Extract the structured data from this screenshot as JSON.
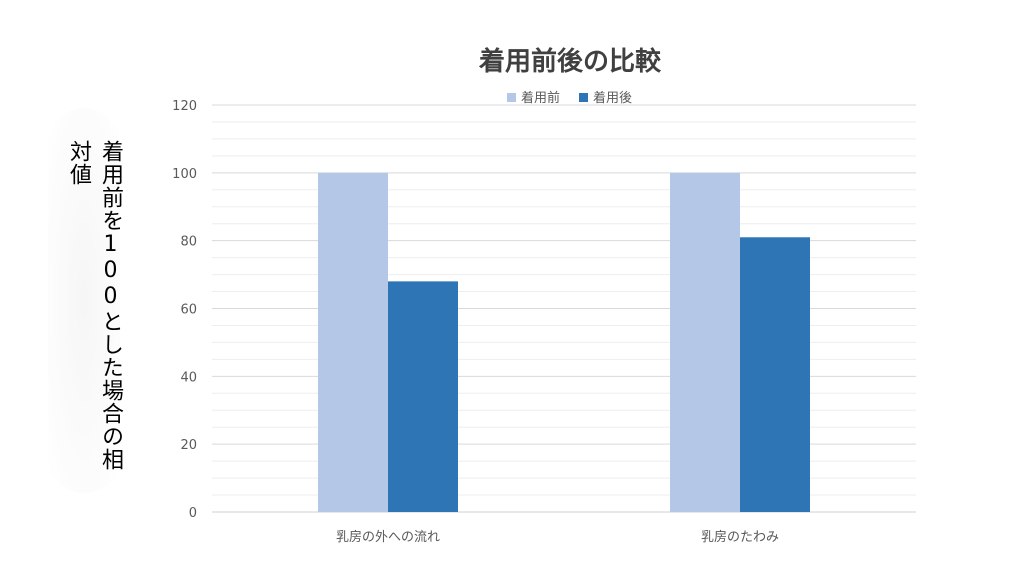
{
  "chart_data": {
    "type": "bar",
    "title": "着用前後の比較",
    "ylabel": "着用前を100とした場合の相対値",
    "xlabel": "",
    "categories": [
      "乳房の外への流れ",
      "乳房のたわみ"
    ],
    "series": [
      {
        "name": "着用前",
        "values": [
          100,
          100
        ],
        "color": "#b4c7e7"
      },
      {
        "name": "着用後",
        "values": [
          68,
          81
        ],
        "color": "#2e75b6"
      }
    ],
    "ylim": [
      0,
      120
    ],
    "yticks": [
      0,
      20,
      40,
      60,
      80,
      100,
      120
    ],
    "grid": true,
    "legend": "top-center"
  }
}
